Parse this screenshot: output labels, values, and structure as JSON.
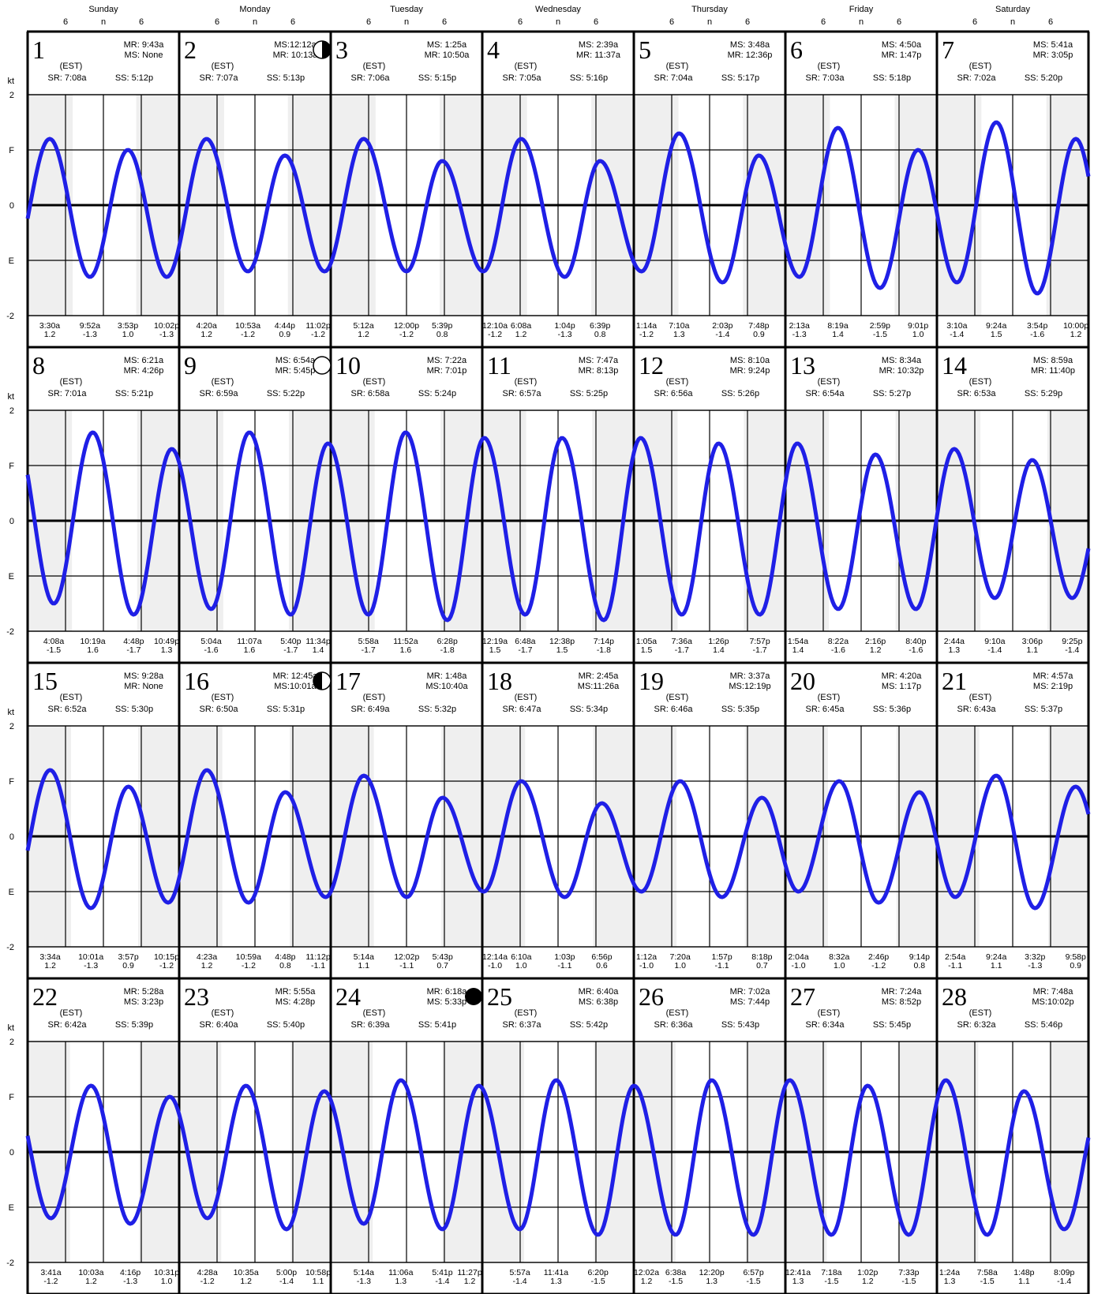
{
  "chart_data": {
    "type": "line",
    "title": "",
    "units_label": "kt",
    "y_tick_labels": [
      "2",
      "F",
      "0",
      "E",
      "-2"
    ],
    "ylim": [
      -2,
      2
    ],
    "day_names": [
      "Sunday",
      "Monday",
      "Tuesday",
      "Wednesday",
      "Thursday",
      "Friday",
      "Saturday"
    ],
    "hour_tick_labels": [
      "6",
      "n",
      "6"
    ],
    "timezone_label": "(EST)",
    "colors": {
      "curve": "#1f1fe6",
      "night_shade": "#efefef",
      "grid": "#000000"
    },
    "days": [
      {
        "day": 1,
        "moon": [
          "MR: 9:43a",
          "MS: None"
        ],
        "phase": "",
        "sr": "SR: 7:08a",
        "ss": "SS: 5:12p",
        "events": [
          {
            "t": "3:30a",
            "v": "1.2"
          },
          {
            "t": "9:52a",
            "v": "-1.3"
          },
          {
            "t": "3:53p",
            "v": "1.0"
          },
          {
            "t": "10:02p",
            "v": "-1.3"
          }
        ]
      },
      {
        "day": 2,
        "moon": [
          "MS:12:12a",
          "MR: 10:13a"
        ],
        "phase": "first",
        "sr": "SR: 7:07a",
        "ss": "SS: 5:13p",
        "events": [
          {
            "t": "4:20a",
            "v": "1.2"
          },
          {
            "t": "10:53a",
            "v": "-1.2"
          },
          {
            "t": "4:44p",
            "v": "0.9"
          },
          {
            "t": "11:02p",
            "v": "-1.2"
          }
        ]
      },
      {
        "day": 3,
        "moon": [
          "MS: 1:25a",
          "MR: 10:50a"
        ],
        "phase": "",
        "sr": "SR: 7:06a",
        "ss": "SS: 5:15p",
        "events": [
          {
            "t": "5:12a",
            "v": "1.2"
          },
          {
            "t": "12:00p",
            "v": "-1.2"
          },
          {
            "t": "5:39p",
            "v": "0.8"
          }
        ]
      },
      {
        "day": 4,
        "moon": [
          "MS: 2:39a",
          "MR: 11:37a"
        ],
        "phase": "",
        "sr": "SR: 7:05a",
        "ss": "SS: 5:16p",
        "events": [
          {
            "t": "12:10a",
            "v": "-1.2"
          },
          {
            "t": "6:08a",
            "v": "1.2"
          },
          {
            "t": "1:04p",
            "v": "-1.3"
          },
          {
            "t": "6:39p",
            "v": "0.8"
          }
        ]
      },
      {
        "day": 5,
        "moon": [
          "MS: 3:48a",
          "MR: 12:36p"
        ],
        "phase": "",
        "sr": "SR: 7:04a",
        "ss": "SS: 5:17p",
        "events": [
          {
            "t": "1:14a",
            "v": "-1.2"
          },
          {
            "t": "7:10a",
            "v": "1.3"
          },
          {
            "t": "2:03p",
            "v": "-1.4"
          },
          {
            "t": "7:48p",
            "v": "0.9"
          }
        ]
      },
      {
        "day": 6,
        "moon": [
          "MS: 4:50a",
          "MR: 1:47p"
        ],
        "phase": "",
        "sr": "SR: 7:03a",
        "ss": "SS: 5:18p",
        "events": [
          {
            "t": "2:13a",
            "v": "-1.3"
          },
          {
            "t": "8:19a",
            "v": "1.4"
          },
          {
            "t": "2:59p",
            "v": "-1.5"
          },
          {
            "t": "9:01p",
            "v": "1.0"
          }
        ]
      },
      {
        "day": 7,
        "moon": [
          "MS: 5:41a",
          "MR: 3:05p"
        ],
        "phase": "",
        "sr": "SR: 7:02a",
        "ss": "SS: 5:20p",
        "events": [
          {
            "t": "3:10a",
            "v": "-1.4"
          },
          {
            "t": "9:24a",
            "v": "1.5"
          },
          {
            "t": "3:54p",
            "v": "-1.6"
          },
          {
            "t": "10:00p",
            "v": "1.2"
          }
        ]
      },
      {
        "day": 8,
        "moon": [
          "MS: 6:21a",
          "MR: 4:26p"
        ],
        "phase": "",
        "sr": "SR: 7:01a",
        "ss": "SS: 5:21p",
        "events": [
          {
            "t": "4:08a",
            "v": "-1.5"
          },
          {
            "t": "10:19a",
            "v": "1.6"
          },
          {
            "t": "4:48p",
            "v": "-1.7"
          },
          {
            "t": "10:49p",
            "v": "1.3"
          }
        ]
      },
      {
        "day": 9,
        "moon": [
          "MS: 6:54a",
          "MR: 5:45p"
        ],
        "phase": "full",
        "sr": "SR: 6:59a",
        "ss": "SS: 5:22p",
        "events": [
          {
            "t": "5:04a",
            "v": "-1.6"
          },
          {
            "t": "11:07a",
            "v": "1.6"
          },
          {
            "t": "5:40p",
            "v": "-1.7"
          },
          {
            "t": "11:34p",
            "v": "1.4"
          }
        ]
      },
      {
        "day": 10,
        "moon": [
          "MS: 7:22a",
          "MR: 7:01p"
        ],
        "phase": "",
        "sr": "SR: 6:58a",
        "ss": "SS: 5:24p",
        "events": [
          {
            "t": "5:58a",
            "v": "-1.7"
          },
          {
            "t": "11:52a",
            "v": "1.6"
          },
          {
            "t": "6:28p",
            "v": "-1.8"
          }
        ]
      },
      {
        "day": 11,
        "moon": [
          "MS: 7:47a",
          "MR: 8:13p"
        ],
        "phase": "",
        "sr": "SR: 6:57a",
        "ss": "SS: 5:25p",
        "events": [
          {
            "t": "12:19a",
            "v": "1.5"
          },
          {
            "t": "6:48a",
            "v": "-1.7"
          },
          {
            "t": "12:38p",
            "v": "1.5"
          },
          {
            "t": "7:14p",
            "v": "-1.8"
          }
        ]
      },
      {
        "day": 12,
        "moon": [
          "MS: 8:10a",
          "MR: 9:24p"
        ],
        "phase": "",
        "sr": "SR: 6:56a",
        "ss": "SS: 5:26p",
        "events": [
          {
            "t": "1:05a",
            "v": "1.5"
          },
          {
            "t": "7:36a",
            "v": "-1.7"
          },
          {
            "t": "1:26p",
            "v": "1.4"
          },
          {
            "t": "7:57p",
            "v": "-1.7"
          }
        ]
      },
      {
        "day": 13,
        "moon": [
          "MS: 8:34a",
          "MR: 10:32p"
        ],
        "phase": "",
        "sr": "SR: 6:54a",
        "ss": "SS: 5:27p",
        "events": [
          {
            "t": "1:54a",
            "v": "1.4"
          },
          {
            "t": "8:22a",
            "v": "-1.6"
          },
          {
            "t": "2:16p",
            "v": "1.2"
          },
          {
            "t": "8:40p",
            "v": "-1.6"
          }
        ]
      },
      {
        "day": 14,
        "moon": [
          "MS: 8:59a",
          "MR: 11:40p"
        ],
        "phase": "",
        "sr": "SR: 6:53a",
        "ss": "SS: 5:29p",
        "events": [
          {
            "t": "2:44a",
            "v": "1.3"
          },
          {
            "t": "9:10a",
            "v": "-1.4"
          },
          {
            "t": "3:06p",
            "v": "1.1"
          },
          {
            "t": "9:25p",
            "v": "-1.4"
          }
        ]
      },
      {
        "day": 15,
        "moon": [
          "MS: 9:28a",
          "MR: None"
        ],
        "phase": "",
        "sr": "SR: 6:52a",
        "ss": "SS: 5:30p",
        "events": [
          {
            "t": "3:34a",
            "v": "1.2"
          },
          {
            "t": "10:01a",
            "v": "-1.3"
          },
          {
            "t": "3:57p",
            "v": "0.9"
          },
          {
            "t": "10:15p",
            "v": "-1.2"
          }
        ]
      },
      {
        "day": 16,
        "moon": [
          "MR: 12:45a",
          "MS:10:01a"
        ],
        "phase": "last",
        "sr": "SR: 6:50a",
        "ss": "SS: 5:31p",
        "events": [
          {
            "t": "4:23a",
            "v": "1.2"
          },
          {
            "t": "10:59a",
            "v": "-1.2"
          },
          {
            "t": "4:48p",
            "v": "0.8"
          },
          {
            "t": "11:12p",
            "v": "-1.1"
          }
        ]
      },
      {
        "day": 17,
        "moon": [
          "MR: 1:48a",
          "MS:10:40a"
        ],
        "phase": "",
        "sr": "SR: 6:49a",
        "ss": "SS: 5:32p",
        "events": [
          {
            "t": "5:14a",
            "v": "1.1"
          },
          {
            "t": "12:02p",
            "v": "-1.1"
          },
          {
            "t": "5:43p",
            "v": "0.7"
          }
        ]
      },
      {
        "day": 18,
        "moon": [
          "MR: 2:45a",
          "MS:11:26a"
        ],
        "phase": "",
        "sr": "SR: 6:47a",
        "ss": "SS: 5:34p",
        "events": [
          {
            "t": "12:14a",
            "v": "-1.0"
          },
          {
            "t": "6:10a",
            "v": "1.0"
          },
          {
            "t": "1:03p",
            "v": "-1.1"
          },
          {
            "t": "6:56p",
            "v": "0.6"
          }
        ]
      },
      {
        "day": 19,
        "moon": [
          "MR: 3:37a",
          "MS:12:19p"
        ],
        "phase": "",
        "sr": "SR: 6:46a",
        "ss": "SS: 5:35p",
        "events": [
          {
            "t": "1:12a",
            "v": "-1.0"
          },
          {
            "t": "7:20a",
            "v": "1.0"
          },
          {
            "t": "1:57p",
            "v": "-1.1"
          },
          {
            "t": "8:18p",
            "v": "0.7"
          }
        ]
      },
      {
        "day": 20,
        "moon": [
          "MR: 4:20a",
          "MS: 1:17p"
        ],
        "phase": "",
        "sr": "SR: 6:45a",
        "ss": "SS: 5:36p",
        "events": [
          {
            "t": "2:04a",
            "v": "-1.0"
          },
          {
            "t": "8:32a",
            "v": "1.0"
          },
          {
            "t": "2:46p",
            "v": "-1.2"
          },
          {
            "t": "9:14p",
            "v": "0.8"
          }
        ]
      },
      {
        "day": 21,
        "moon": [
          "MR: 4:57a",
          "MS: 2:19p"
        ],
        "phase": "",
        "sr": "SR: 6:43a",
        "ss": "SS: 5:37p",
        "events": [
          {
            "t": "2:54a",
            "v": "-1.1"
          },
          {
            "t": "9:24a",
            "v": "1.1"
          },
          {
            "t": "3:32p",
            "v": "-1.3"
          },
          {
            "t": "9:58p",
            "v": "0.9"
          }
        ]
      },
      {
        "day": 22,
        "moon": [
          "MR: 5:28a",
          "MS: 3:23p"
        ],
        "phase": "",
        "sr": "SR: 6:42a",
        "ss": "SS: 5:39p",
        "events": [
          {
            "t": "3:41a",
            "v": "-1.2"
          },
          {
            "t": "10:03a",
            "v": "1.2"
          },
          {
            "t": "4:16p",
            "v": "-1.3"
          },
          {
            "t": "10:31p",
            "v": "1.0"
          }
        ]
      },
      {
        "day": 23,
        "moon": [
          "MR: 5:55a",
          "MS: 4:28p"
        ],
        "phase": "",
        "sr": "SR: 6:40a",
        "ss": "SS: 5:40p",
        "events": [
          {
            "t": "4:28a",
            "v": "-1.2"
          },
          {
            "t": "10:35a",
            "v": "1.2"
          },
          {
            "t": "5:00p",
            "v": "-1.4"
          },
          {
            "t": "10:58p",
            "v": "1.1"
          }
        ]
      },
      {
        "day": 24,
        "moon": [
          "MR: 6:18a",
          "MS: 5:33p"
        ],
        "phase": "new",
        "sr": "SR: 6:39a",
        "ss": "SS: 5:41p",
        "events": [
          {
            "t": "5:14a",
            "v": "-1.3"
          },
          {
            "t": "11:06a",
            "v": "1.3"
          },
          {
            "t": "5:41p",
            "v": "-1.4"
          },
          {
            "t": "11:27p",
            "v": "1.2"
          }
        ]
      },
      {
        "day": 25,
        "moon": [
          "MR: 6:40a",
          "MS: 6:38p"
        ],
        "phase": "",
        "sr": "SR: 6:37a",
        "ss": "SS: 5:42p",
        "events": [
          {
            "t": "5:57a",
            "v": "-1.4"
          },
          {
            "t": "11:41a",
            "v": "1.3"
          },
          {
            "t": "6:20p",
            "v": "-1.5"
          }
        ]
      },
      {
        "day": 26,
        "moon": [
          "MR: 7:02a",
          "MS: 7:44p"
        ],
        "phase": "",
        "sr": "SR: 6:36a",
        "ss": "SS: 5:43p",
        "events": [
          {
            "t": "12:02a",
            "v": "1.2"
          },
          {
            "t": "6:38a",
            "v": "-1.5"
          },
          {
            "t": "12:20p",
            "v": "1.3"
          },
          {
            "t": "6:57p",
            "v": "-1.5"
          }
        ]
      },
      {
        "day": 27,
        "moon": [
          "MR: 7:24a",
          "MS: 8:52p"
        ],
        "phase": "",
        "sr": "SR: 6:34a",
        "ss": "SS: 5:45p",
        "events": [
          {
            "t": "12:41a",
            "v": "1.3"
          },
          {
            "t": "7:18a",
            "v": "-1.5"
          },
          {
            "t": "1:02p",
            "v": "1.2"
          },
          {
            "t": "7:33p",
            "v": "-1.5"
          }
        ]
      },
      {
        "day": 28,
        "moon": [
          "MR: 7:48a",
          "MS:10:02p"
        ],
        "phase": "",
        "sr": "SR: 6:32a",
        "ss": "SS: 5:46p",
        "events": [
          {
            "t": "1:24a",
            "v": "1.3"
          },
          {
            "t": "7:58a",
            "v": "-1.5"
          },
          {
            "t": "1:48p",
            "v": "1.1"
          },
          {
            "t": "8:09p",
            "v": "-1.4"
          }
        ]
      }
    ]
  }
}
